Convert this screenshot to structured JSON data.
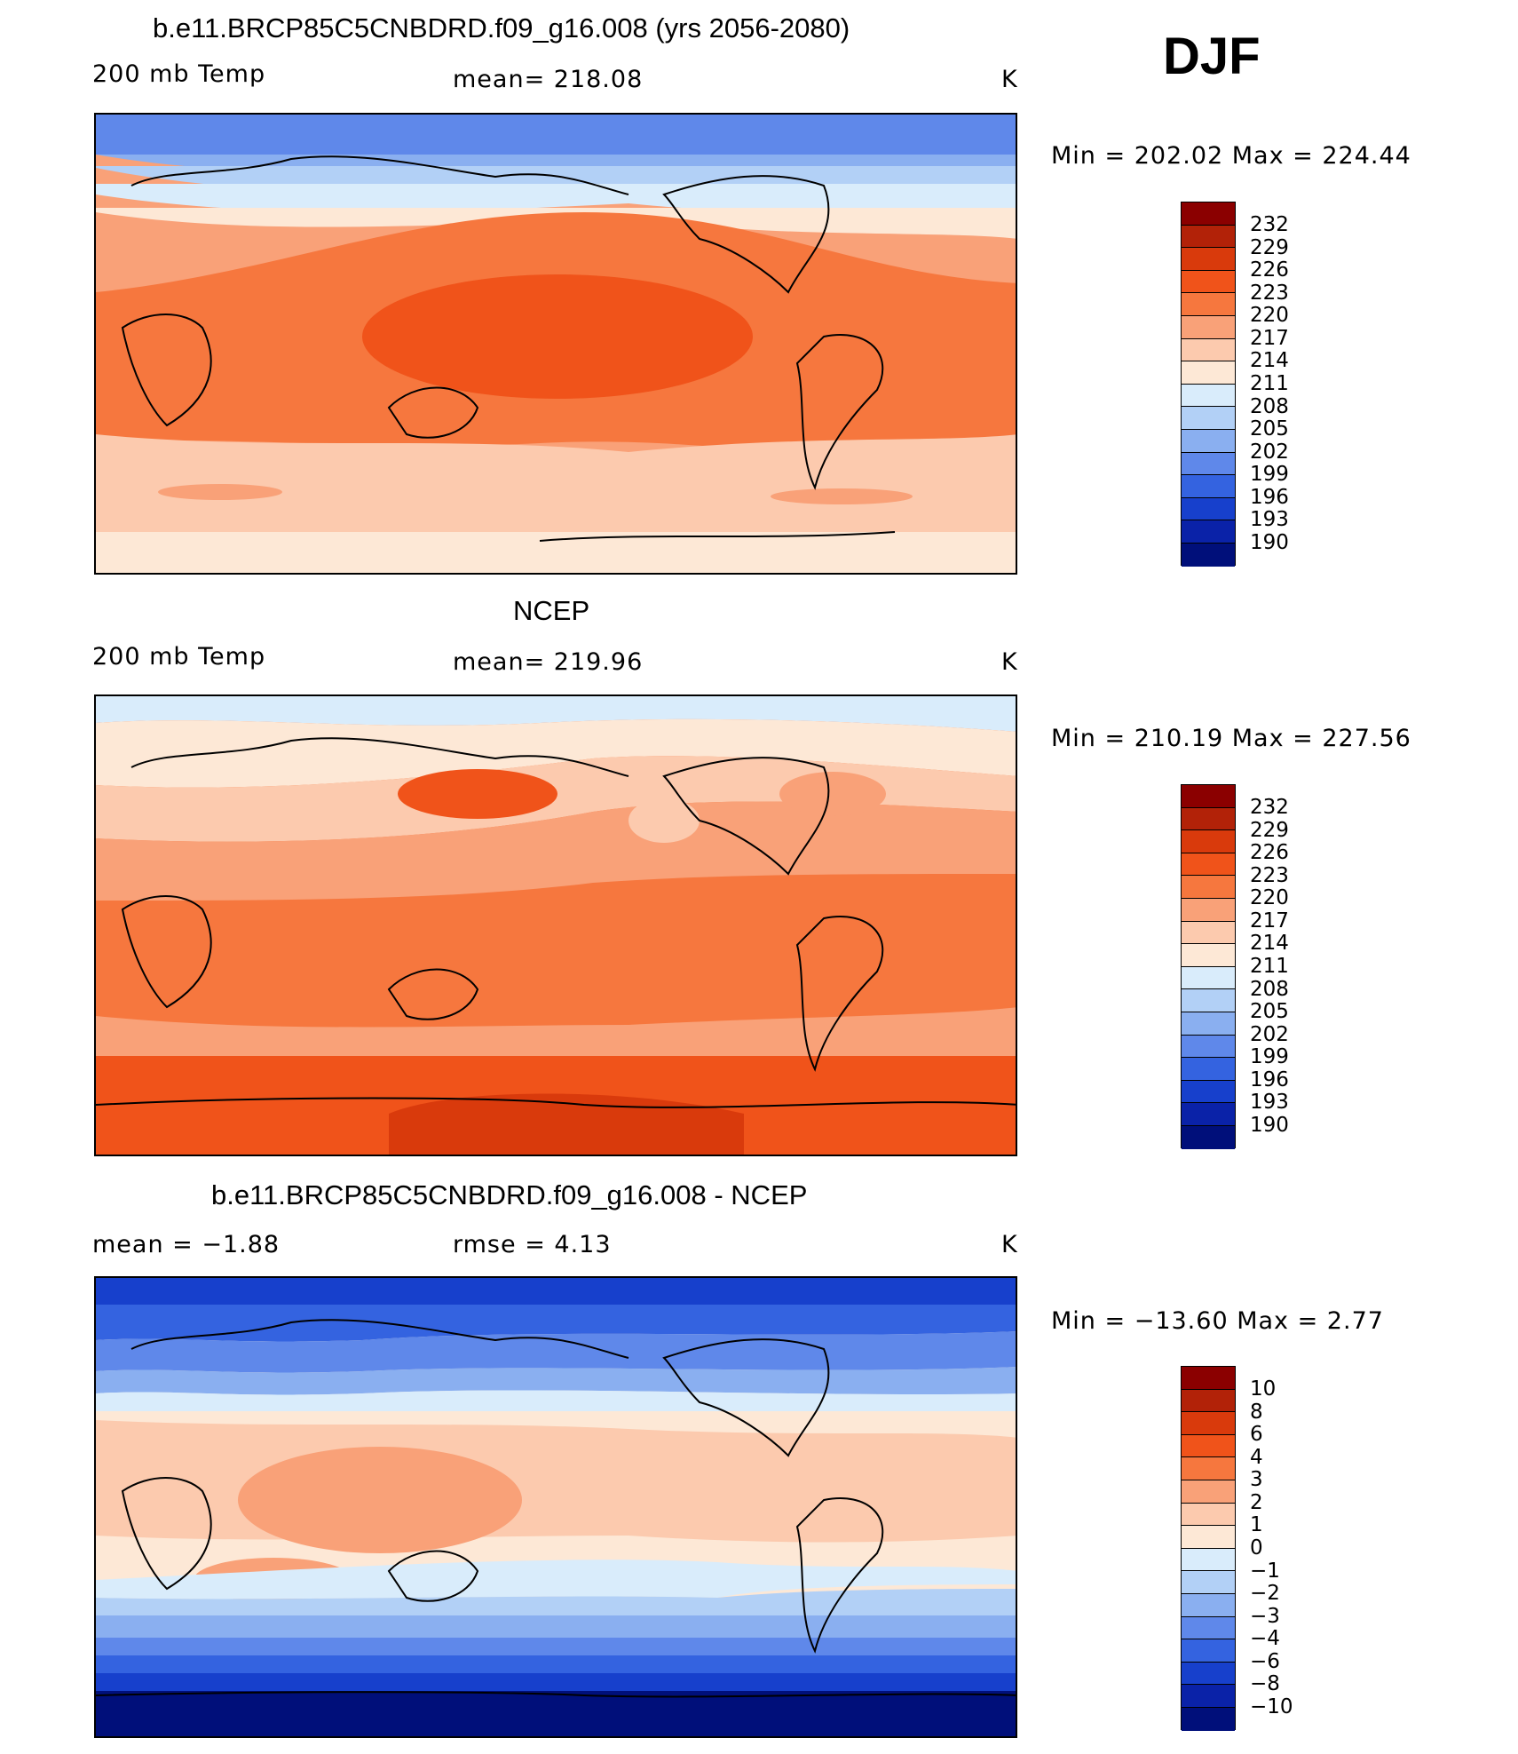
{
  "season": "DJF",
  "panels": [
    {
      "title": "b.e11.BRCP85C5CNBDRD.f09_g16.008 (yrs 2056-2080)",
      "left_label": "200 mb Temp",
      "center_label": "mean=  218.08",
      "units": "K",
      "minmax": "Min  =  202.02  Max  =  224.44",
      "levels": [
        "232",
        "229",
        "226",
        "223",
        "220",
        "217",
        "214",
        "211",
        "208",
        "205",
        "202",
        "199",
        "196",
        "193",
        "190"
      ]
    },
    {
      "title": "NCEP",
      "left_label": "200 mb Temp",
      "center_label": "mean=  219.96",
      "units": "K",
      "minmax": "Min  =  210.19  Max  =  227.56",
      "levels": [
        "232",
        "229",
        "226",
        "223",
        "220",
        "217",
        "214",
        "211",
        "208",
        "205",
        "202",
        "199",
        "196",
        "193",
        "190"
      ]
    },
    {
      "title": "b.e11.BRCP85C5CNBDRD.f09_g16.008 - NCEP",
      "left_label": "mean  =    −1.88",
      "center_label": "rmse  =     4.13",
      "units": "K",
      "minmax": "Min  =  −13.60  Max  =     2.77",
      "levels": [
        "10",
        "8",
        "6",
        "4",
        "3",
        "2",
        "1",
        "0",
        "−1",
        "−2",
        "−3",
        "−4",
        "−6",
        "−8",
        "−10"
      ]
    }
  ],
  "colors": {
    "scale": [
      "#8b0000",
      "#b22208",
      "#d93a0c",
      "#f0531a",
      "#f6773e",
      "#f9a178",
      "#fccaae",
      "#fde8d6",
      "#d9ecfb",
      "#b2d0f6",
      "#8aaff0",
      "#5f88ea",
      "#3463e0",
      "#1740cc",
      "#0a22a8",
      "#000f7a"
    ]
  }
}
